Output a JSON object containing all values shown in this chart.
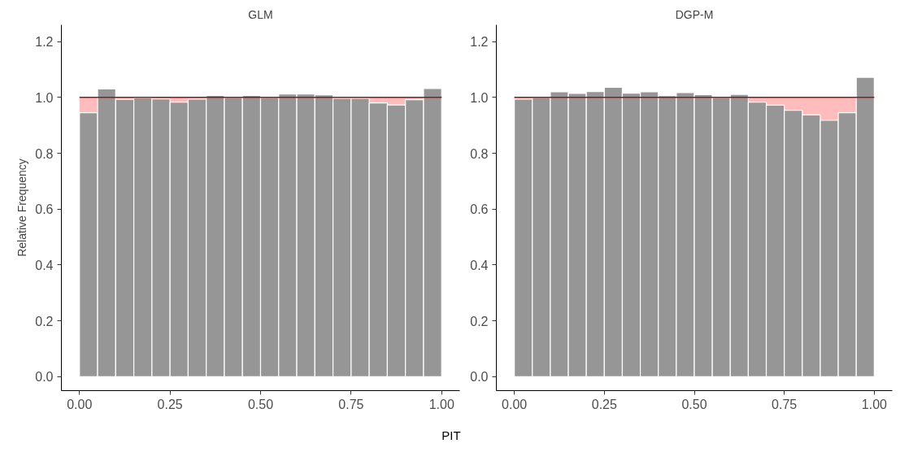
{
  "chart_data": [
    {
      "type": "histogram",
      "title": "GLM",
      "ylabel": "Relative Frequency",
      "xlabel": "PIT",
      "bins": [
        0,
        0.05,
        0.1,
        0.15,
        0.2,
        0.25,
        0.3,
        0.35,
        0.4,
        0.45,
        0.5,
        0.55,
        0.6,
        0.65,
        0.7,
        0.75,
        0.8,
        0.85,
        0.9,
        0.95,
        1.0
      ],
      "values": [
        0.945,
        1.03,
        0.993,
        0.998,
        0.995,
        0.983,
        0.994,
        1.007,
        1.0,
        1.007,
        1.0,
        1.012,
        1.012,
        1.009,
        0.997,
        0.997,
        0.98,
        0.973,
        0.992,
        1.032
      ],
      "color": "#969696",
      "xlim": [
        -0.05,
        1.05
      ],
      "ylim": [
        -0.05,
        1.26
      ],
      "xticks": [
        {
          "value": 0,
          "label": "0.00"
        },
        {
          "value": 0.25,
          "label": "0.25"
        },
        {
          "value": 0.5,
          "label": "0.50"
        },
        {
          "value": 0.75,
          "label": "0.75"
        },
        {
          "value": 1,
          "label": "1.00"
        }
      ],
      "yticks": [
        {
          "value": 0,
          "label": "0.0"
        },
        {
          "value": 0.2,
          "label": "0.2"
        },
        {
          "value": 0.4,
          "label": "0.4"
        },
        {
          "value": 0.6,
          "label": "0.6"
        },
        {
          "value": 0.8,
          "label": "0.8"
        },
        {
          "value": 1,
          "label": "1.0"
        },
        {
          "value": 1.2,
          "label": "1.2"
        }
      ],
      "ref_lines": [
        {
          "axis": "y",
          "value": 1,
          "color": "#8b1a1a"
        }
      ],
      "bands": [
        {
          "axis": "y",
          "from": 0,
          "to": 1,
          "color": "#ffbcbc"
        }
      ],
      "grid": false
    },
    {
      "type": "histogram",
      "title": "DGP-M",
      "bins": [
        0,
        0.05,
        0.1,
        0.15,
        0.2,
        0.25,
        0.3,
        0.35,
        0.4,
        0.45,
        0.5,
        0.55,
        0.6,
        0.65,
        0.7,
        0.75,
        0.8,
        0.85,
        0.9,
        0.95,
        1.0
      ],
      "values": [
        0.994,
        1.0,
        1.02,
        1.014,
        1.021,
        1.036,
        1.015,
        1.02,
        1.006,
        1.017,
        1.01,
        1.0,
        1.011,
        0.983,
        0.972,
        0.954,
        0.937,
        0.918,
        0.945,
        1.072
      ],
      "color": "#969696",
      "xlim": [
        -0.05,
        1.05
      ],
      "ylim": [
        -0.05,
        1.26
      ],
      "xticks": [
        {
          "value": 0,
          "label": "0.00"
        },
        {
          "value": 0.25,
          "label": "0.25"
        },
        {
          "value": 0.5,
          "label": "0.50"
        },
        {
          "value": 0.75,
          "label": "0.75"
        },
        {
          "value": 1,
          "label": "1.00"
        }
      ],
      "yticks": [
        {
          "value": 0,
          "label": "0.0"
        },
        {
          "value": 0.2,
          "label": "0.2"
        },
        {
          "value": 0.4,
          "label": "0.4"
        },
        {
          "value": 0.6,
          "label": "0.6"
        },
        {
          "value": 0.8,
          "label": "0.8"
        },
        {
          "value": 1,
          "label": "1.0"
        },
        {
          "value": 1.2,
          "label": "1.2"
        }
      ],
      "ref_lines": [
        {
          "axis": "y",
          "value": 1,
          "color": "#8b1a1a"
        }
      ],
      "bands": [
        {
          "axis": "y",
          "from": 0,
          "to": 1,
          "color": "#ffbcbc"
        }
      ],
      "grid": false
    }
  ]
}
